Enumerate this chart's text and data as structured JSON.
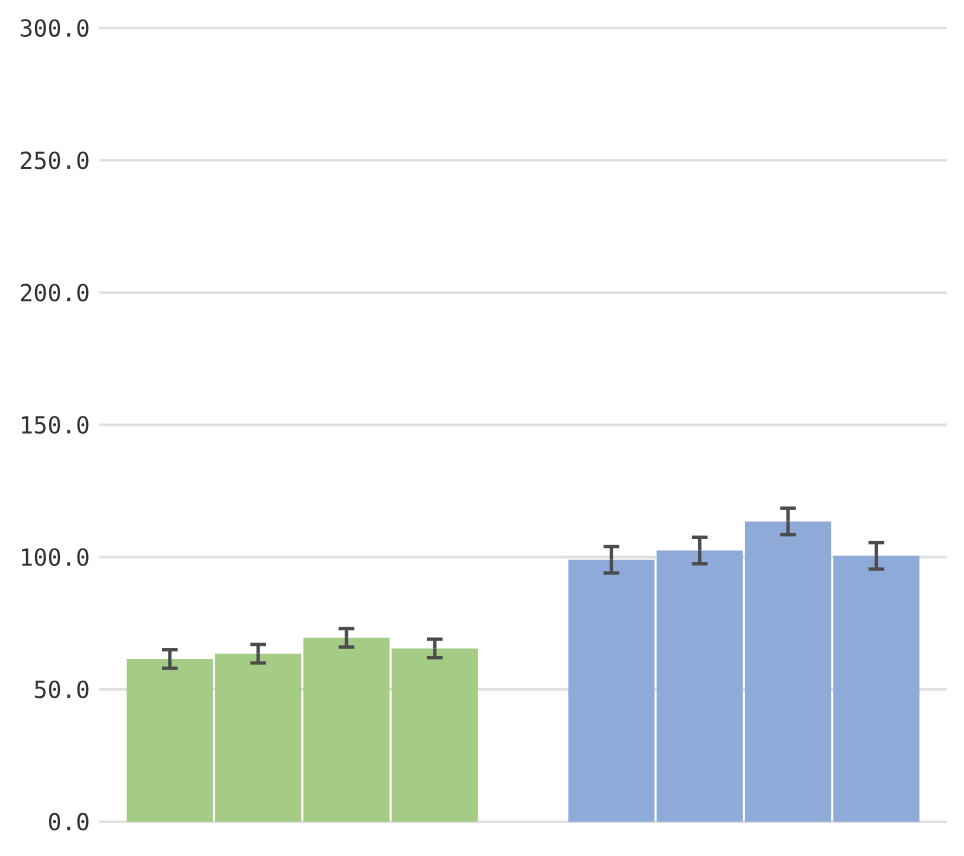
{
  "chart_data": {
    "type": "bar",
    "categories": [
      null,
      null,
      null,
      null,
      null,
      null,
      null,
      null,
      null
    ],
    "values": [
      61.5,
      63.5,
      69.5,
      65.5,
      null,
      99.0,
      102.5,
      113.5,
      100.5
    ],
    "errors": [
      3.5,
      3.5,
      3.5,
      3.5,
      null,
      5,
      5,
      5,
      5
    ],
    "colors": [
      "#a4cc84",
      "#a4cc84",
      "#a4cc84",
      "#a4cc84",
      null,
      "#8eaad8",
      "#8eaad8",
      "#8eaad8",
      "#8eaad8"
    ],
    "ylim": [
      0,
      300
    ],
    "yticks": [
      {
        "value": 0,
        "label": "0.0"
      },
      {
        "value": 50,
        "label": "50.0"
      },
      {
        "value": 100,
        "label": "100.0"
      },
      {
        "value": 150,
        "label": "150.0"
      },
      {
        "value": 200,
        "label": "200.0"
      },
      {
        "value": 250,
        "label": "250.0"
      },
      {
        "value": 300,
        "label": "300.0"
      }
    ],
    "grid": "y",
    "tick_labels": "y"
  }
}
